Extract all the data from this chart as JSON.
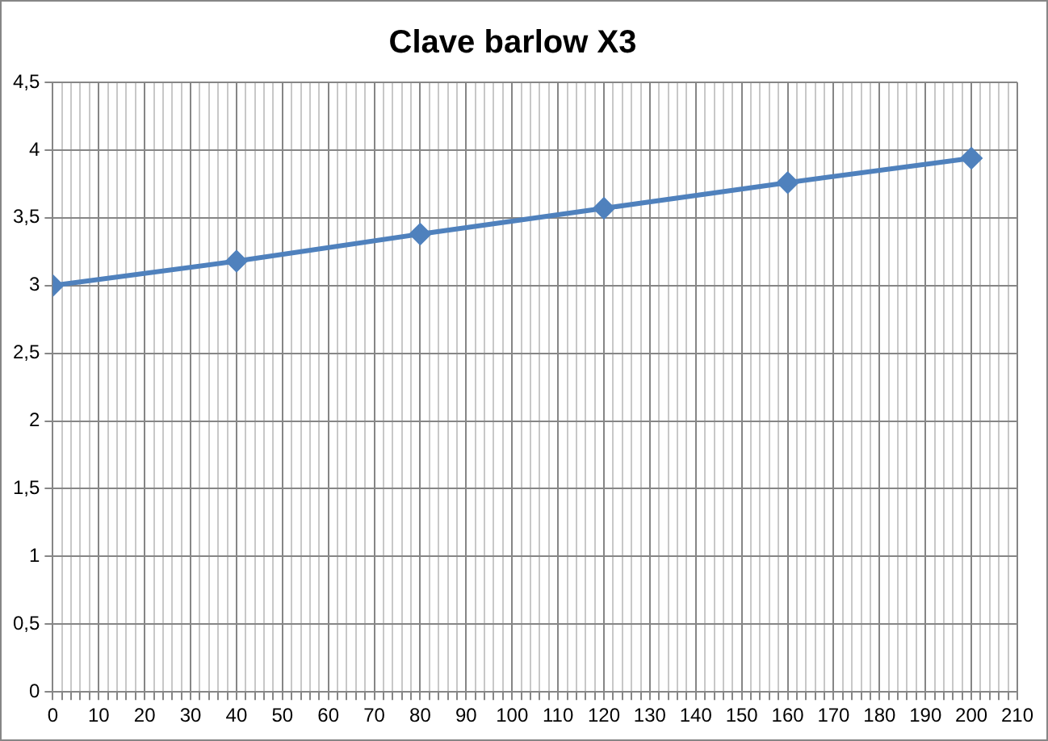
{
  "chart_data": {
    "type": "line",
    "title": "Clave barlow X3",
    "x": [
      0,
      40,
      80,
      120,
      160,
      200
    ],
    "series": [
      {
        "color": "#4f81bd",
        "values": [
          3.0,
          3.18,
          3.38,
          3.57,
          3.76,
          3.94
        ]
      }
    ],
    "xlim": [
      0,
      210
    ],
    "xticks": [
      0,
      {
        "value": 2,
        "label": null
      },
      {
        "value": 4,
        "label": null
      },
      {
        "value": 6,
        "label": null
      },
      {
        "value": 8,
        "label": null
      },
      10,
      {
        "value": 12,
        "label": null
      },
      {
        "value": 14,
        "label": null
      },
      {
        "value": 16,
        "label": null
      },
      {
        "value": 18,
        "label": null
      },
      20,
      {
        "value": 22,
        "label": null
      },
      {
        "value": 24,
        "label": null
      },
      {
        "value": 26,
        "label": null
      },
      {
        "value": 28,
        "label": null
      },
      30,
      {
        "value": 32,
        "label": null
      },
      {
        "value": 34,
        "label": null
      },
      {
        "value": 36,
        "label": null
      },
      {
        "value": 38,
        "label": null
      },
      40,
      {
        "value": 42,
        "label": null
      },
      {
        "value": 44,
        "label": null
      },
      {
        "value": 46,
        "label": null
      },
      {
        "value": 48,
        "label": null
      },
      50,
      {
        "value": 52,
        "label": null
      },
      {
        "value": 54,
        "label": null
      },
      {
        "value": 56,
        "label": null
      },
      {
        "value": 58,
        "label": null
      },
      60,
      {
        "value": 62,
        "label": null
      },
      {
        "value": 64,
        "label": null
      },
      {
        "value": 66,
        "label": null
      },
      {
        "value": 68,
        "label": null
      },
      70,
      {
        "value": 72,
        "label": null
      },
      {
        "value": 74,
        "label": null
      },
      {
        "value": 76,
        "label": null
      },
      {
        "value": 78,
        "label": null
      },
      80,
      {
        "value": 82,
        "label": null
      },
      {
        "value": 84,
        "label": null
      },
      {
        "value": 86,
        "label": null
      },
      {
        "value": 88,
        "label": null
      },
      90,
      {
        "value": 92,
        "label": null
      },
      {
        "value": 94,
        "label": null
      },
      {
        "value": 96,
        "label": null
      },
      {
        "value": 98,
        "label": null
      },
      100,
      {
        "value": 102,
        "label": null
      },
      {
        "value": 104,
        "label": null
      },
      {
        "value": 106,
        "label": null
      },
      {
        "value": 108,
        "label": null
      },
      110,
      {
        "value": 112,
        "label": null
      },
      {
        "value": 114,
        "label": null
      },
      {
        "value": 116,
        "label": null
      },
      {
        "value": 118,
        "label": null
      },
      120,
      {
        "value": 122,
        "label": null
      },
      {
        "value": 124,
        "label": null
      },
      {
        "value": 126,
        "label": null
      },
      {
        "value": 128,
        "label": null
      },
      130,
      {
        "value": 132,
        "label": null
      },
      {
        "value": 134,
        "label": null
      },
      {
        "value": 136,
        "label": null
      },
      {
        "value": 138,
        "label": null
      },
      140,
      {
        "value": 142,
        "label": null
      },
      {
        "value": 144,
        "label": null
      },
      {
        "value": 146,
        "label": null
      },
      {
        "value": 148,
        "label": null
      },
      150,
      {
        "value": 152,
        "label": null
      },
      {
        "value": 154,
        "label": null
      },
      {
        "value": 156,
        "label": null
      },
      {
        "value": 158,
        "label": null
      },
      160,
      {
        "value": 162,
        "label": null
      },
      {
        "value": 164,
        "label": null
      },
      {
        "value": 166,
        "label": null
      },
      {
        "value": 168,
        "label": null
      },
      170,
      {
        "value": 172,
        "label": null
      },
      {
        "value": 174,
        "label": null
      },
      {
        "value": 176,
        "label": null
      },
      {
        "value": 178,
        "label": null
      },
      180,
      {
        "value": 182,
        "label": null
      },
      {
        "value": 184,
        "label": null
      },
      {
        "value": 186,
        "label": null
      },
      {
        "value": 188,
        "label": null
      },
      190,
      {
        "value": 192,
        "label": null
      },
      {
        "value": 194,
        "label": null
      },
      {
        "value": 196,
        "label": null
      },
      {
        "value": 198,
        "label": null
      },
      200,
      {
        "value": 202,
        "label": null
      },
      {
        "value": 204,
        "label": null
      },
      {
        "value": 206,
        "label": null
      },
      {
        "value": 208,
        "label": null
      },
      210
    ],
    "ylim": [
      0,
      4.5
    ],
    "yticks": [
      0,
      {
        "value": 0.5,
        "label": "0,5"
      },
      1,
      {
        "value": 1.5,
        "label": "1,5"
      },
      2,
      {
        "value": 2.5,
        "label": "2,5"
      },
      3,
      {
        "value": 3.5,
        "label": "3,5"
      },
      4,
      {
        "value": 4.5,
        "label": "4,5"
      }
    ],
    "grid": true,
    "legend": false,
    "marker": "diamond",
    "line_style": "solid"
  }
}
